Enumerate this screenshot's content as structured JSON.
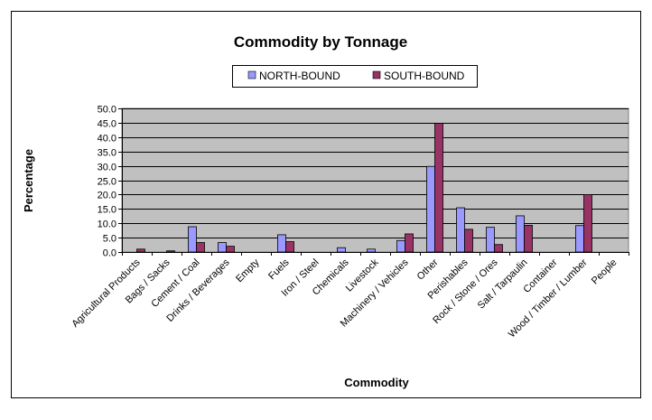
{
  "chart_data": {
    "type": "bar",
    "title": "Commodity by Tonnage",
    "xlabel": "Commodity",
    "ylabel": "Percentage",
    "ylim": [
      0,
      50
    ],
    "yticks": [
      "0.0",
      "5.0",
      "10.0",
      "15.0",
      "20.0",
      "25.0",
      "30.0",
      "35.0",
      "40.0",
      "45.0",
      "50.0"
    ],
    "grid": true,
    "legend_position": "top",
    "categories": [
      "Agricultural Products",
      "Bags / Sacks",
      "Cement / Coal",
      "Drinks / Beverages",
      "Empty",
      "Fuels",
      "Iron / Steel",
      "Chemicals",
      "Livestock",
      "Machinery / Vehicles",
      "Other",
      "Perishables",
      "Rock / Stone / Ores",
      "Salt / Tarpaulin",
      "Container",
      "Wood / Timber / Lumber",
      "People"
    ],
    "series": [
      {
        "name": "NORTH-BOUND",
        "color": "#9999ff",
        "values": [
          0.0,
          0.0,
          8.8,
          3.3,
          0.0,
          6.0,
          0.0,
          1.5,
          1.0,
          4.0,
          29.8,
          15.4,
          8.6,
          12.6,
          0.0,
          9.2,
          0.0
        ]
      },
      {
        "name": "SOUTH-BOUND",
        "color": "#993366",
        "values": [
          1.0,
          0.4,
          3.3,
          2.0,
          0.0,
          3.6,
          0.0,
          0.0,
          0.0,
          6.3,
          44.8,
          7.9,
          2.6,
          9.3,
          0.0,
          20.0,
          0.0
        ]
      }
    ],
    "plot_background": "#c0c0c0",
    "gridline_color": "#000000"
  }
}
